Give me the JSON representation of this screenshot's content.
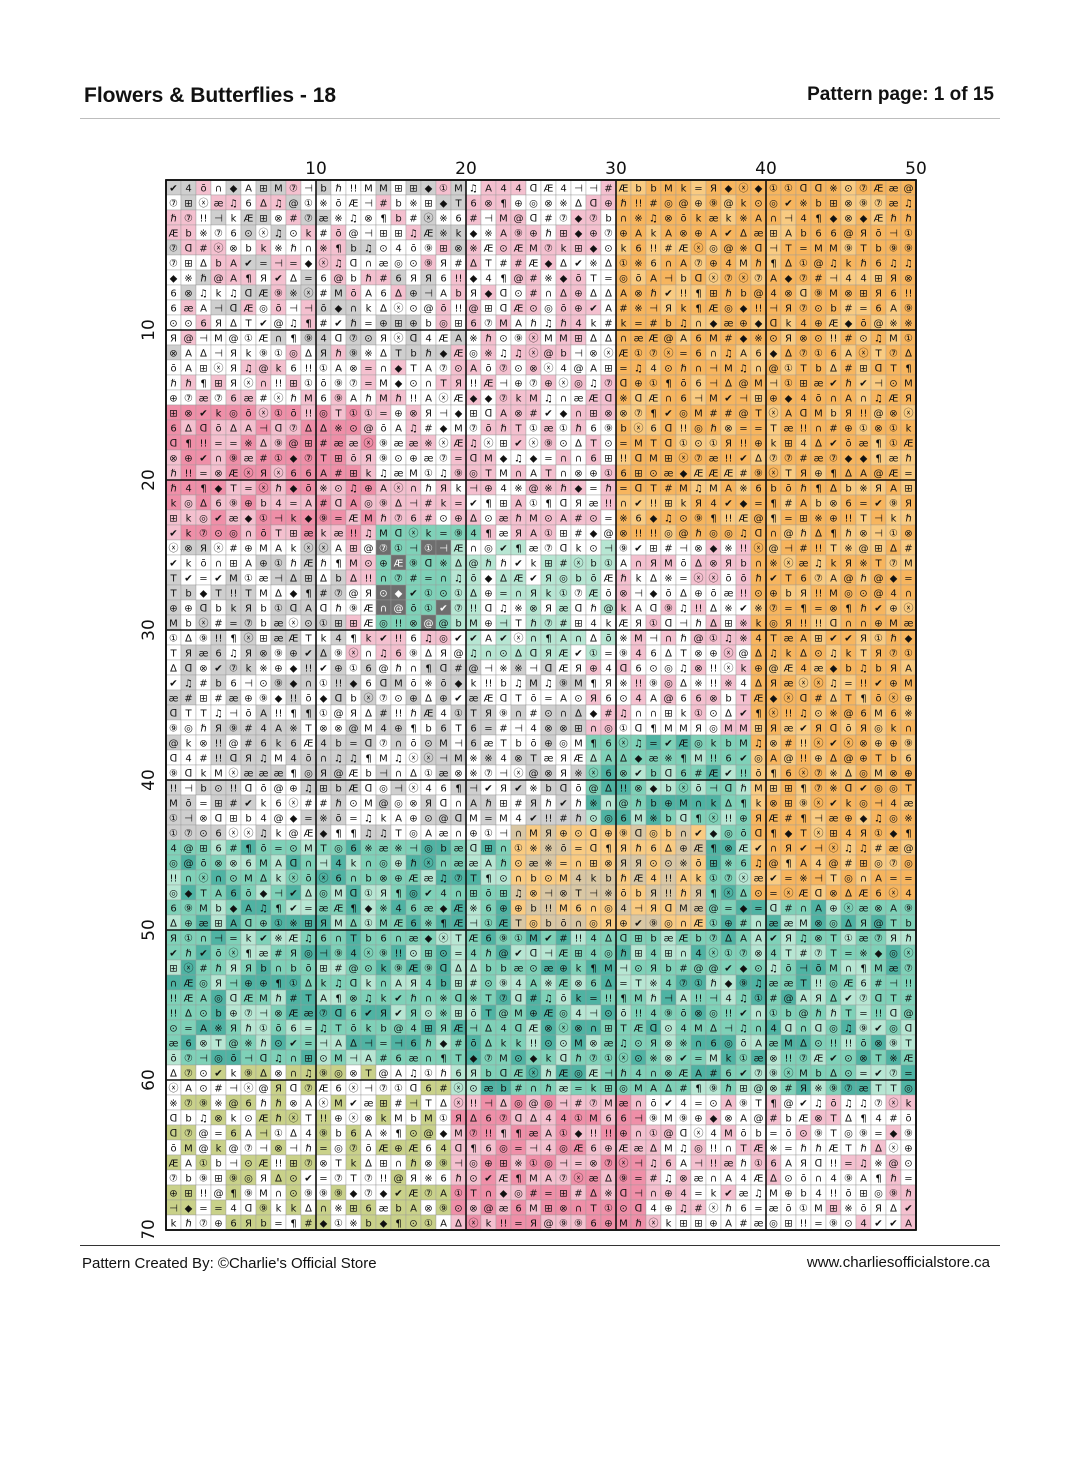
{
  "header": {
    "title": "Flowers & Butterflies - 18",
    "page_indicator": "Pattern page: 1 of 15"
  },
  "chart": {
    "columns": 50,
    "rows": 70,
    "column_labels": [
      "10",
      "20",
      "30",
      "40",
      "50"
    ],
    "row_labels": [
      "10",
      "20",
      "30",
      "40",
      "50",
      "60",
      "70"
    ],
    "palette": {
      "orange": "#f7b55e",
      "orange_light": "#f9cb82",
      "pink": "#ef8fa8",
      "pink_light": "#f4c0cf",
      "mint": "#7fd1b8",
      "mint_light": "#b7e6d3",
      "teal": "#4fb3a3",
      "white": "#ffffff",
      "grey": "#cfcfcf",
      "charcoal": "#6e6e6e",
      "tan": "#d9c7a4",
      "olive": "#c9d18a"
    },
    "symbols": [
      "◎",
      "ᗡ",
      "M",
      "=",
      "∆",
      "¶",
      "4",
      "T",
      "⊕",
      "◆",
      "♫",
      "①",
      "ℏ",
      "Я",
      "ō",
      "⑨",
      "⊞",
      "æ",
      "k",
      "A",
      "#",
      "!!",
      "⊗",
      "∩",
      "⊣",
      "⑦",
      "@",
      "b",
      "ⓧ",
      "✔",
      "6",
      "※",
      "Æ",
      "⊙"
    ]
  },
  "footer": {
    "credit": "Pattern Created By: ©Charlie's Official Store",
    "url": "www.charliesofficialstore.ca"
  }
}
